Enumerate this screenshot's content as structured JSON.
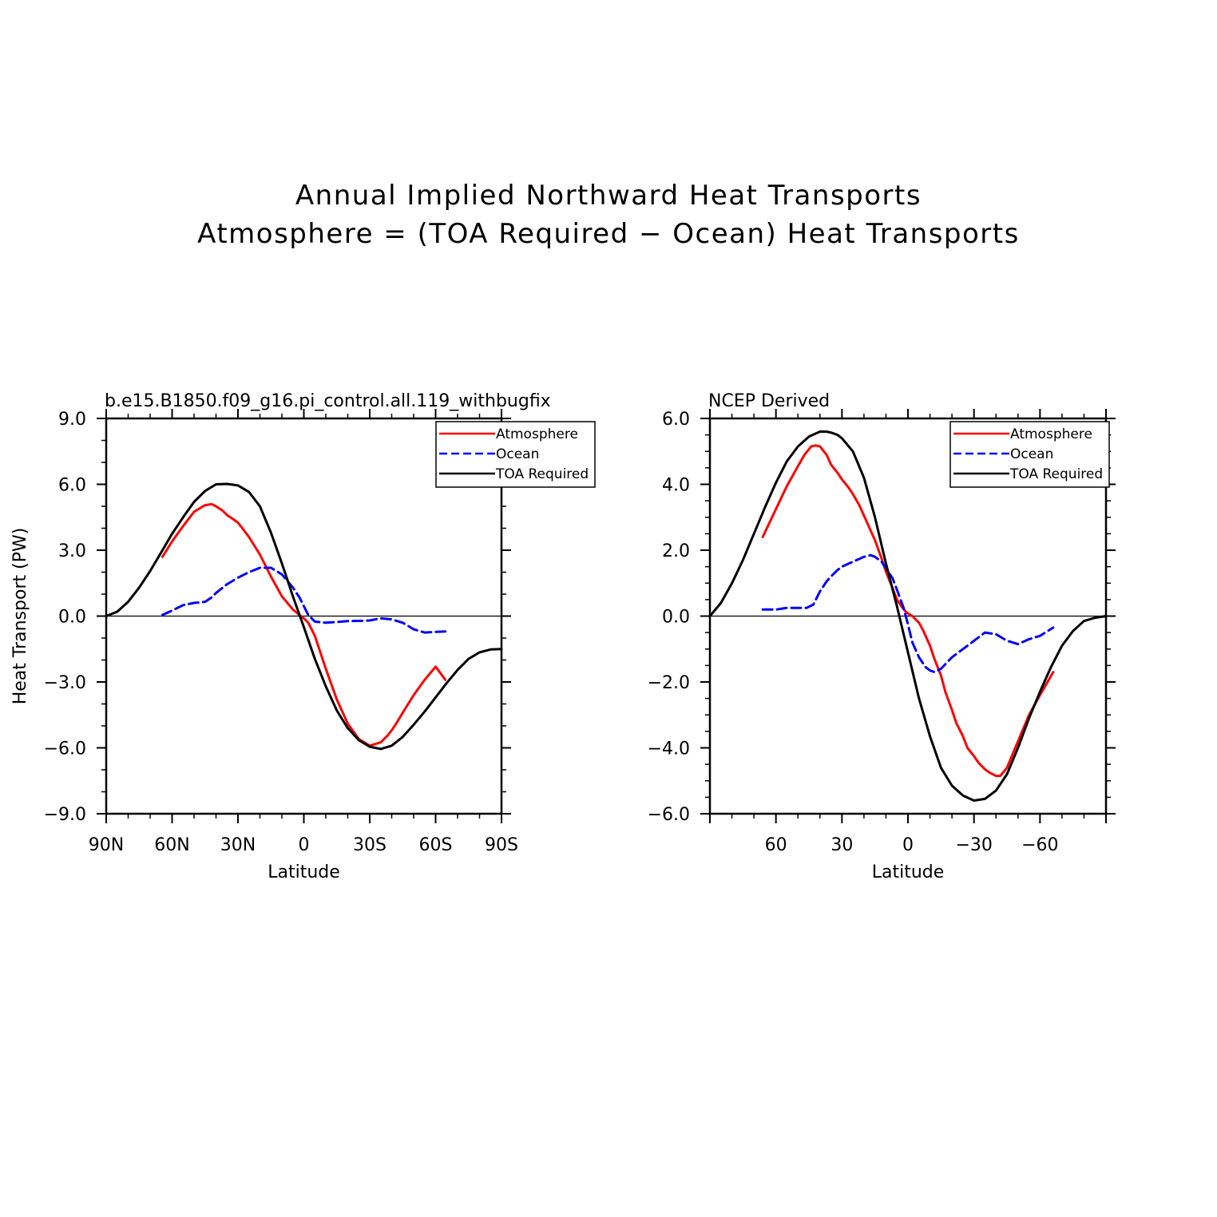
{
  "figure": {
    "title_line1": "Annual Implied Northward Heat Transports",
    "title_line2": "Atmosphere = (TOA Required − Ocean) Heat Transports"
  },
  "colors": {
    "atmosphere": "#ff0000",
    "ocean": "#0000ff",
    "toa": "#000000"
  },
  "chart_data": [
    {
      "type": "line",
      "panel": "left",
      "title": "b.e15.B1850.f09_g16.pi_control.all.119_withbugfix",
      "xlabel": "Latitude",
      "ylabel": "Heat Transport (PW)",
      "xlim": [
        90,
        -90
      ],
      "ylim": [
        -9,
        9
      ],
      "x_major_ticks": [
        90,
        60,
        30,
        0,
        -30,
        -60,
        -90
      ],
      "x_tick_labels": [
        "90N",
        "60N",
        "30N",
        "0",
        "30S",
        "60S",
        "90S"
      ],
      "x_minor_step": 10,
      "y_major_ticks": [
        9,
        6,
        3,
        0,
        -3,
        -6,
        -9
      ],
      "y_tick_labels": [
        "9.0",
        "6.0",
        "3.0",
        "0.0",
        "−3.0",
        "−6.0",
        "−9.0"
      ],
      "y_minor_step": 1,
      "legend_position": "top-right",
      "legend": [
        "Atmosphere",
        "Ocean",
        "TOA Required"
      ],
      "series": [
        {
          "name": "Atmosphere",
          "style": "solid",
          "x": [
            64.4,
            60,
            55,
            50,
            45,
            42,
            40,
            37,
            35,
            32,
            30,
            28,
            25,
            20,
            15,
            10,
            5,
            2,
            0,
            -2,
            -5,
            -10,
            -15,
            -20,
            -25,
            -30,
            -35,
            -38,
            -40,
            -42,
            -45,
            -50,
            -55,
            -60,
            -64.4
          ],
          "y": [
            2.7,
            3.4,
            4.1,
            4.75,
            5.05,
            5.1,
            5.0,
            4.8,
            4.6,
            4.4,
            4.25,
            4.0,
            3.6,
            2.8,
            1.8,
            0.9,
            0.3,
            0.05,
            -0.1,
            -0.3,
            -0.9,
            -2.4,
            -3.8,
            -4.9,
            -5.6,
            -5.9,
            -5.75,
            -5.45,
            -5.2,
            -4.9,
            -4.4,
            -3.6,
            -2.9,
            -2.3,
            -2.9
          ]
        },
        {
          "name": "Ocean",
          "style": "dashed",
          "x": [
            64.4,
            60,
            55,
            50,
            45,
            42,
            40,
            35,
            30,
            25,
            20,
            15,
            10,
            5,
            2,
            0,
            -2,
            -5,
            -10,
            -15,
            -20,
            -25,
            -30,
            -35,
            -40,
            -45,
            -50,
            -55,
            -60,
            -64.4
          ],
          "y": [
            0.05,
            0.25,
            0.5,
            0.6,
            0.65,
            0.85,
            1.05,
            1.45,
            1.75,
            2.0,
            2.2,
            2.2,
            1.9,
            1.3,
            0.85,
            0.45,
            0.05,
            -0.25,
            -0.3,
            -0.27,
            -0.23,
            -0.22,
            -0.2,
            -0.1,
            -0.15,
            -0.3,
            -0.6,
            -0.75,
            -0.72,
            -0.7
          ]
        },
        {
          "name": "TOA Required",
          "style": "solid",
          "x": [
            90,
            85,
            80,
            75,
            70,
            65,
            60,
            55,
            50,
            45,
            40,
            35,
            30,
            25,
            20,
            15,
            10,
            5,
            0,
            -5,
            -10,
            -15,
            -20,
            -25,
            -30,
            -35,
            -40,
            -45,
            -50,
            -55,
            -60,
            -65,
            -70,
            -75,
            -80,
            -85,
            -90
          ],
          "y": [
            0.0,
            0.2,
            0.65,
            1.3,
            2.05,
            2.9,
            3.75,
            4.5,
            5.2,
            5.7,
            6.0,
            6.02,
            5.95,
            5.65,
            5.0,
            3.8,
            2.4,
            0.9,
            -0.5,
            -1.95,
            -3.2,
            -4.3,
            -5.1,
            -5.65,
            -5.95,
            -6.05,
            -5.9,
            -5.5,
            -4.95,
            -4.35,
            -3.7,
            -3.05,
            -2.45,
            -1.95,
            -1.65,
            -1.52,
            -1.5
          ]
        }
      ]
    },
    {
      "type": "line",
      "panel": "right",
      "title": "NCEP Derived",
      "xlabel": "Latitude",
      "ylabel": "",
      "xlim": [
        90,
        -90
      ],
      "ylim": [
        -6,
        6
      ],
      "x_major_ticks": [
        90,
        60,
        30,
        0,
        -30,
        -60,
        -90
      ],
      "x_tick_labels": [
        "",
        "60",
        "30",
        "0",
        "−30",
        "−60",
        ""
      ],
      "x_minor_step": 10,
      "y_major_ticks": [
        6,
        4,
        2,
        0,
        -2,
        -4,
        -6
      ],
      "y_tick_labels": [
        "6.0",
        "4.0",
        "2.0",
        "0.0",
        "−2.0",
        "−4.0",
        "−6.0"
      ],
      "y_minor_step": 0.5,
      "legend_position": "top-right",
      "legend": [
        "Atmosphere",
        "Ocean",
        "TOA Required"
      ],
      "series": [
        {
          "name": "Atmosphere",
          "style": "solid",
          "x": [
            66,
            60,
            55,
            50,
            47,
            44,
            42,
            40,
            37,
            35,
            32,
            30,
            27,
            25,
            22,
            20,
            17,
            15,
            12,
            10,
            7,
            5,
            3,
            1,
            0,
            -2,
            -5,
            -7,
            -10,
            -12,
            -15,
            -17,
            -20,
            -22,
            -25,
            -27,
            -30,
            -32,
            -35,
            -37,
            -40,
            -42,
            -45,
            -50,
            -55,
            -60,
            -66
          ],
          "y": [
            2.4,
            3.25,
            3.95,
            4.55,
            4.9,
            5.15,
            5.18,
            5.15,
            4.9,
            4.6,
            4.35,
            4.15,
            3.9,
            3.7,
            3.35,
            3.05,
            2.6,
            2.3,
            1.75,
            1.35,
            0.85,
            0.5,
            0.3,
            0.13,
            0.08,
            0.0,
            -0.2,
            -0.45,
            -0.9,
            -1.3,
            -1.8,
            -2.3,
            -2.85,
            -3.25,
            -3.65,
            -4.0,
            -4.25,
            -4.45,
            -4.65,
            -4.75,
            -4.85,
            -4.85,
            -4.6,
            -3.8,
            -3.0,
            -2.4,
            -1.7
          ]
        },
        {
          "name": "Ocean",
          "style": "dashed",
          "x": [
            66,
            60,
            55,
            50,
            46,
            43,
            40,
            37,
            35,
            32,
            30,
            25,
            20,
            17,
            15,
            12,
            10,
            7,
            5,
            2,
            0,
            -2,
            -5,
            -8,
            -10,
            -12,
            -15,
            -20,
            -25,
            -30,
            -35,
            -40,
            -45,
            -50,
            -55,
            -60,
            -66
          ],
          "y": [
            0.2,
            0.2,
            0.25,
            0.25,
            0.25,
            0.35,
            0.75,
            1.05,
            1.2,
            1.4,
            1.5,
            1.65,
            1.8,
            1.85,
            1.8,
            1.65,
            1.45,
            1.15,
            0.8,
            0.25,
            -0.25,
            -0.8,
            -1.25,
            -1.55,
            -1.65,
            -1.7,
            -1.6,
            -1.25,
            -1.0,
            -0.75,
            -0.5,
            -0.55,
            -0.75,
            -0.85,
            -0.7,
            -0.6,
            -0.35
          ]
        },
        {
          "name": "TOA Required",
          "style": "solid",
          "x": [
            90,
            85,
            80,
            75,
            70,
            65,
            60,
            55,
            50,
            45,
            40,
            37,
            35,
            32,
            30,
            25,
            20,
            15,
            10,
            5,
            0,
            -5,
            -10,
            -15,
            -20,
            -25,
            -30,
            -35,
            -40,
            -45,
            -50,
            -55,
            -60,
            -65,
            -70,
            -75,
            -80,
            -85,
            -90
          ],
          "y": [
            0.0,
            0.4,
            1.0,
            1.7,
            2.5,
            3.3,
            4.05,
            4.7,
            5.15,
            5.45,
            5.6,
            5.6,
            5.57,
            5.5,
            5.4,
            5.0,
            4.2,
            3.0,
            1.6,
            0.3,
            -1.1,
            -2.5,
            -3.65,
            -4.6,
            -5.15,
            -5.45,
            -5.6,
            -5.55,
            -5.3,
            -4.8,
            -4.0,
            -3.1,
            -2.3,
            -1.55,
            -0.9,
            -0.45,
            -0.15,
            -0.05,
            0.0
          ]
        }
      ]
    }
  ]
}
